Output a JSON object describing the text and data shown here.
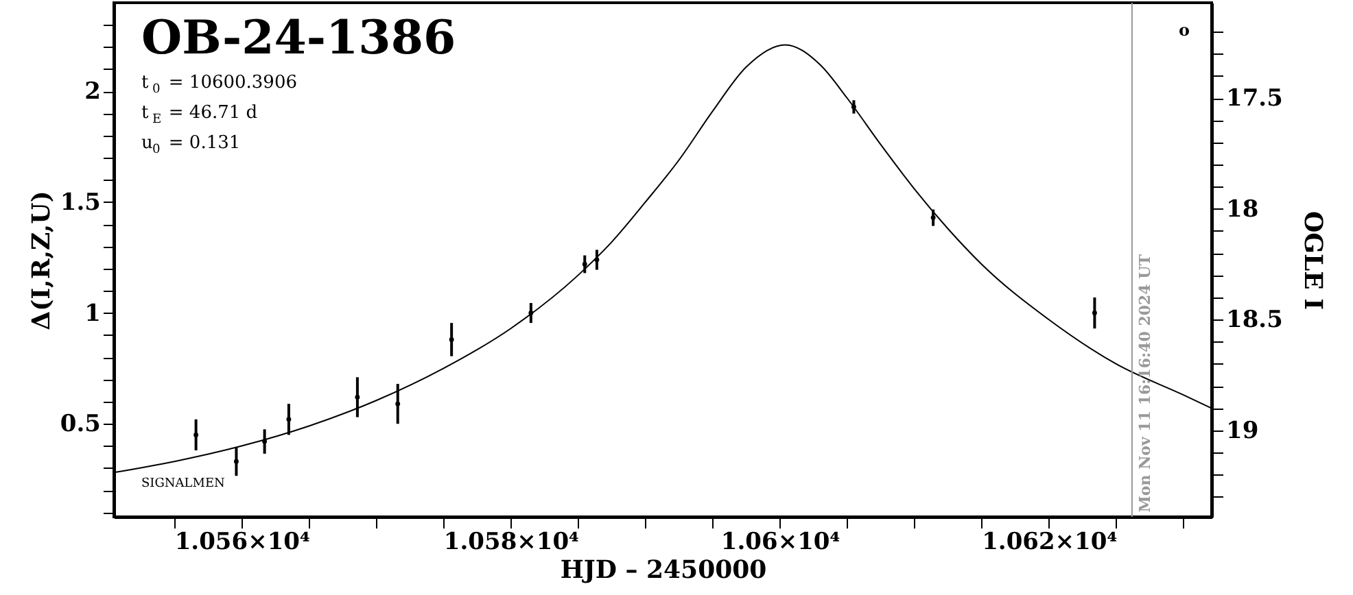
{
  "chart_data": {
    "type": "scatter",
    "title": "OB-24-1386",
    "xlabel": "HJD – 2450000",
    "ylabel": "Δ(I,R,Z,U)",
    "y2label": "OGLE I",
    "annotations": [
      "t$_{0}$ = 10600.3906",
      "t$_{E}$ = 46.71 d",
      "u$_{0}$ = 0.131",
      "SIGNALMEN",
      "o",
      {
        "text": "Mon Nov 11 16:16:40 2024 UT",
        "x": 10626.18,
        "y": 0.1
      }
    ],
    "series": [
      {
        "color": "#000000",
        "marker": "circle",
        "x": [
          10556.6,
          10559.6,
          10561.7,
          10563.5,
          10568.6,
          10571.6,
          10575.6,
          10581.5,
          10585.5,
          10586.4,
          10605.5,
          10611.4,
          10623.4
        ],
        "values": [
          0.45,
          0.33,
          0.42,
          0.52,
          0.62,
          0.59,
          0.88,
          1.0,
          1.22,
          1.24,
          1.93,
          1.43,
          1.0
        ],
        "errors": [
          0.07,
          0.065,
          0.055,
          0.07,
          0.09,
          0.09,
          0.075,
          0.045,
          0.04,
          0.045,
          0.03,
          0.037,
          0.07
        ]
      },
      {
        "type": "line",
        "color": "#000000",
        "line_style": "solid",
        "x": [
          10550.5,
          10555,
          10560,
          10565,
          10570,
          10575,
          10580,
          10585,
          10587.5,
          10590,
          10592.5,
          10595,
          10597.5,
          10600.4,
          10603,
          10605,
          10607.5,
          10610,
          10612.5,
          10615,
          10620,
          10625,
          10630,
          10632.1
        ],
        "values": [
          0.28,
          0.33,
          0.4,
          0.49,
          0.605,
          0.75,
          0.93,
          1.17,
          1.32,
          1.5,
          1.69,
          1.91,
          2.11,
          2.21,
          2.12,
          1.97,
          1.76,
          1.56,
          1.38,
          1.22,
          0.97,
          0.77,
          0.63,
          0.57
        ]
      }
    ],
    "xlim": [
      10550.5,
      10632.1
    ],
    "ylim": [
      0.08,
      2.4
    ],
    "y2lim": [
      19.39,
      17.07
    ],
    "xticks": [
      {
        "value": 10555,
        "label": null
      },
      {
        "value": 10560,
        "label": "1.056×10⁴"
      },
      {
        "value": 10565,
        "label": null
      },
      {
        "value": 10570,
        "label": null
      },
      {
        "value": 10575,
        "label": null
      },
      {
        "value": 10580,
        "label": "1.058×10⁴"
      },
      {
        "value": 10585,
        "label": null
      },
      {
        "value": 10590,
        "label": null
      },
      {
        "value": 10595,
        "label": null
      },
      {
        "value": 10600,
        "label": "1.06×10⁴"
      },
      {
        "value": 10605,
        "label": null
      },
      {
        "value": 10610,
        "label": null
      },
      {
        "value": 10615,
        "label": null
      },
      {
        "value": 10620,
        "label": "1.062×10⁴"
      },
      {
        "value": 10625,
        "label": null
      },
      {
        "value": 10630,
        "label": null
      }
    ],
    "yticks": [
      {
        "value": 0.1,
        "label": null
      },
      {
        "value": 0.2,
        "label": null
      },
      {
        "value": 0.3,
        "label": null
      },
      {
        "value": 0.4,
        "label": null
      },
      0.5,
      {
        "value": 0.6,
        "label": null
      },
      {
        "value": 0.7,
        "label": null
      },
      {
        "value": 0.8,
        "label": null
      },
      {
        "value": 0.9,
        "label": null
      },
      1,
      {
        "value": 1.1,
        "label": null
      },
      {
        "value": 1.2,
        "label": null
      },
      {
        "value": 1.3,
        "label": null
      },
      {
        "value": 1.4,
        "label": null
      },
      1.5,
      {
        "value": 1.6,
        "label": null
      },
      {
        "value": 1.7,
        "label": null
      },
      {
        "value": 1.8,
        "label": null
      },
      {
        "value": 1.9,
        "label": null
      },
      2,
      {
        "value": 2.1,
        "label": null
      },
      {
        "value": 2.2,
        "label": null
      },
      {
        "value": 2.3,
        "label": null
      }
    ],
    "y2ticks": [
      {
        "value": 17.2,
        "label": null
      },
      {
        "value": 17.3,
        "label": null
      },
      {
        "value": 17.4,
        "label": null
      },
      17.5,
      {
        "value": 17.6,
        "label": null
      },
      {
        "value": 17.7,
        "label": null
      },
      {
        "value": 17.8,
        "label": null
      },
      {
        "value": 17.9,
        "label": null
      },
      18,
      {
        "value": 18.1,
        "label": null
      },
      {
        "value": 18.2,
        "label": null
      },
      {
        "value": 18.3,
        "label": null
      },
      {
        "value": 18.4,
        "label": null
      },
      18.5,
      {
        "value": 18.6,
        "label": null
      },
      {
        "value": 18.7,
        "label": null
      },
      {
        "value": 18.8,
        "label": null
      },
      {
        "value": 18.9,
        "label": null
      },
      19,
      {
        "value": 19.1,
        "label": null
      },
      {
        "value": 19.2,
        "label": null
      },
      {
        "value": 19.3,
        "label": null
      }
    ],
    "ref_lines": [
      {
        "axis": "x",
        "value": 10626.18,
        "color": "#999999"
      }
    ],
    "grid": false
  }
}
